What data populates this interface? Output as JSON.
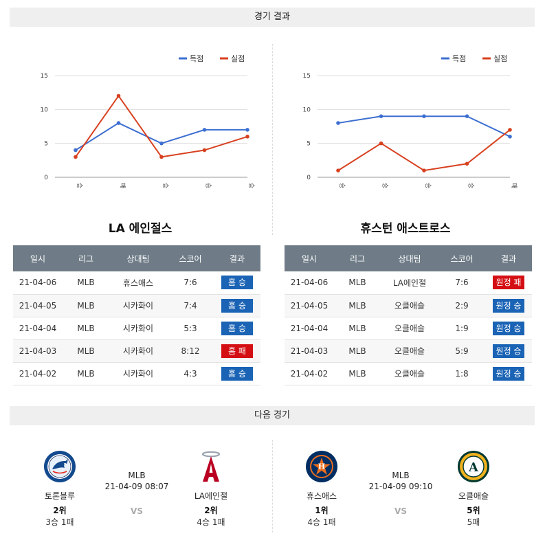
{
  "sections": {
    "results_title": "경기 결과",
    "next_title": "다음 경기"
  },
  "legend": {
    "scored": "득점",
    "allowed": "실점"
  },
  "colors": {
    "scored": "#3d6fd1",
    "allowed": "#d8401f",
    "win": "#1a63b5",
    "loss": "#d40f14",
    "header": "#6f7c87"
  },
  "chart_data": [
    {
      "type": "line",
      "categories": [
        "승",
        "패",
        "승",
        "승",
        "승"
      ],
      "ylim": [
        0,
        15
      ],
      "yticks": [
        0,
        5,
        10,
        15
      ],
      "legend_position": "top-right",
      "series": [
        {
          "name": "득점",
          "values": [
            4,
            8,
            5,
            7,
            7
          ]
        },
        {
          "name": "실점",
          "values": [
            3,
            12,
            3,
            4,
            6
          ]
        }
      ]
    },
    {
      "type": "line",
      "categories": [
        "승",
        "승",
        "승",
        "승",
        "패"
      ],
      "ylim": [
        0,
        15
      ],
      "yticks": [
        0,
        5,
        10,
        15
      ],
      "legend_position": "top-right",
      "series": [
        {
          "name": "득점",
          "values": [
            8,
            9,
            9,
            9,
            6
          ]
        },
        {
          "name": "실점",
          "values": [
            1,
            5,
            1,
            2,
            7
          ]
        }
      ]
    }
  ],
  "teams": [
    {
      "title": "LA 에인절스",
      "headers": [
        "일시",
        "리그",
        "상대팀",
        "스코어",
        "결과"
      ],
      "rows": [
        {
          "date": "21-04-06",
          "league": "MLB",
          "opponent": "휴스애스",
          "score": "7:6",
          "result": "홈 승",
          "win": true
        },
        {
          "date": "21-04-05",
          "league": "MLB",
          "opponent": "시카화이",
          "score": "7:4",
          "result": "홈 승",
          "win": true
        },
        {
          "date": "21-04-04",
          "league": "MLB",
          "opponent": "시카화이",
          "score": "5:3",
          "result": "홈 승",
          "win": true
        },
        {
          "date": "21-04-03",
          "league": "MLB",
          "opponent": "시카화이",
          "score": "8:12",
          "result": "홈 패",
          "win": false
        },
        {
          "date": "21-04-02",
          "league": "MLB",
          "opponent": "시카화이",
          "score": "4:3",
          "result": "홈 승",
          "win": true
        }
      ]
    },
    {
      "title": "휴스턴 애스트로스",
      "headers": [
        "일시",
        "리그",
        "상대팀",
        "스코어",
        "결과"
      ],
      "rows": [
        {
          "date": "21-04-06",
          "league": "MLB",
          "opponent": "LA에인절",
          "score": "7:6",
          "result": "원정 패",
          "win": false
        },
        {
          "date": "21-04-05",
          "league": "MLB",
          "opponent": "오클애슬",
          "score": "2:9",
          "result": "원정 승",
          "win": true
        },
        {
          "date": "21-04-04",
          "league": "MLB",
          "opponent": "오클애슬",
          "score": "1:9",
          "result": "원정 승",
          "win": true
        },
        {
          "date": "21-04-03",
          "league": "MLB",
          "opponent": "오클애슬",
          "score": "5:9",
          "result": "원정 승",
          "win": true
        },
        {
          "date": "21-04-02",
          "league": "MLB",
          "opponent": "오클애슬",
          "score": "1:8",
          "result": "원정 승",
          "win": true
        }
      ]
    }
  ],
  "next_games": [
    {
      "league": "MLB",
      "datetime": "21-04-09 08:07",
      "vs": "VS",
      "home": {
        "name": "토론블루",
        "rank": "2위",
        "record": "3승 1패",
        "logo": "blue-jays-logo-icon"
      },
      "away": {
        "name": "LA에인절",
        "rank": "2위",
        "record": "4승 1패",
        "logo": "angels-logo-icon"
      }
    },
    {
      "league": "MLB",
      "datetime": "21-04-09 09:10",
      "vs": "VS",
      "home": {
        "name": "휴스애스",
        "rank": "1위",
        "record": "4승 1패",
        "logo": "astros-logo-icon"
      },
      "away": {
        "name": "오클애슬",
        "rank": "5위",
        "record": "5패",
        "logo": "athletics-logo-icon"
      }
    }
  ]
}
